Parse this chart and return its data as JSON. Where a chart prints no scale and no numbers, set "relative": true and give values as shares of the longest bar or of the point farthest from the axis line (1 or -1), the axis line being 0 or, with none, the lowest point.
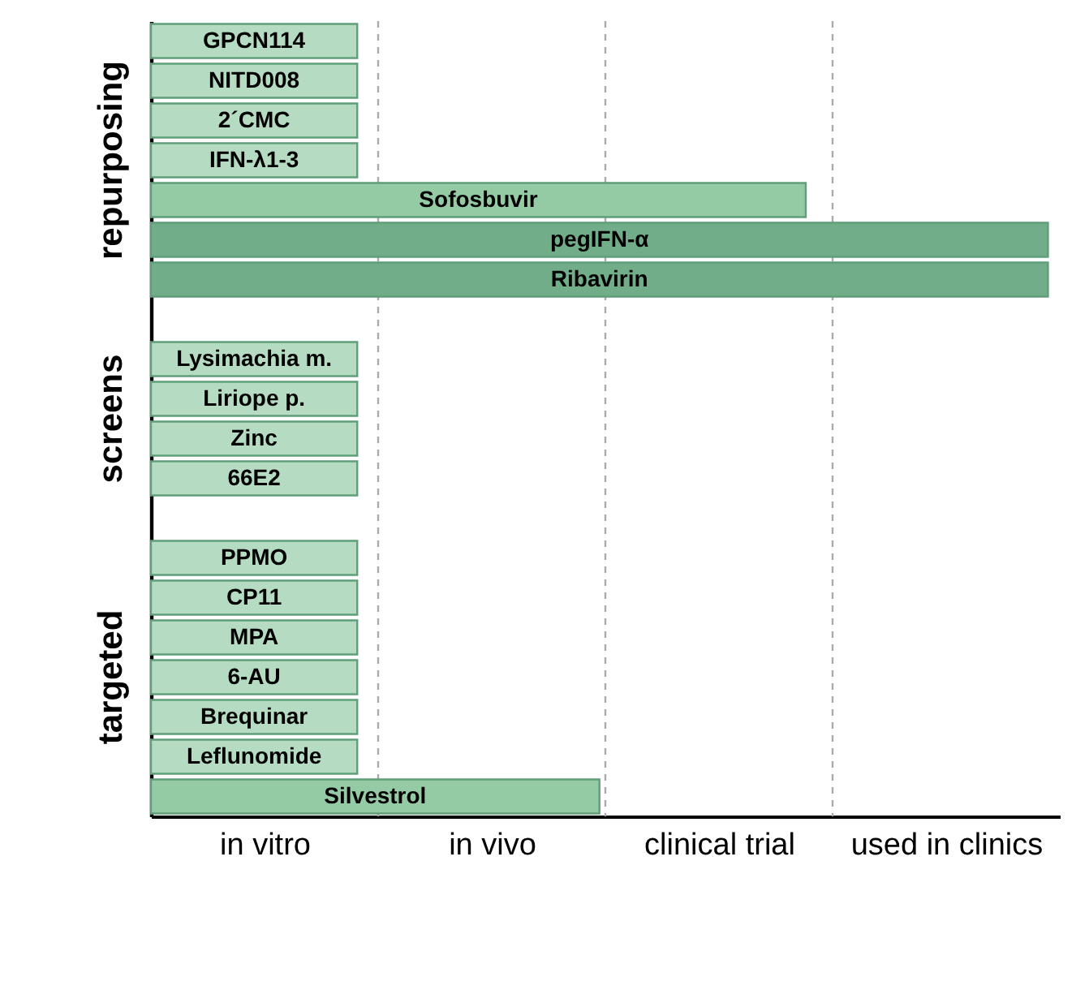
{
  "chart_data": {
    "type": "bar",
    "orientation": "horizontal",
    "relative": true,
    "categories": [
      "GPCN114",
      "NITD008",
      "2´CMC",
      "IFN-λ1-3",
      "Sofosbuvir",
      "pegIFN-α",
      "Ribavirin",
      null,
      "Lysimachia m.",
      "Liriope p.",
      "Zinc",
      "66E2",
      null,
      "PPMO",
      "CP11",
      "MPA",
      "6-AU",
      "Brequinar",
      "Leflunomide",
      "Silvestrol"
    ],
    "values": [
      0.23,
      0.23,
      0.23,
      0.23,
      0.73,
      1,
      1,
      null,
      0.23,
      0.23,
      0.23,
      0.23,
      null,
      0.23,
      0.23,
      0.23,
      0.23,
      0.23,
      0.23,
      0.5
    ],
    "colors": [
      "#b5dcc2",
      "#b5dcc2",
      "#b5dcc2",
      "#b5dcc2",
      "#94cba5",
      "#72ad8a",
      "#72ad8a",
      null,
      "#b5dcc2",
      "#b5dcc2",
      "#b5dcc2",
      "#b5dcc2",
      null,
      "#b5dcc2",
      "#b5dcc2",
      "#b5dcc2",
      "#b5dcc2",
      "#b5dcc2",
      "#b5dcc2",
      "#94cba5"
    ],
    "annotations": [
      "in vitro",
      "in vivo",
      "clinical trial",
      "used in clinics",
      "repurposing",
      "screens",
      "targeted"
    ]
  }
}
